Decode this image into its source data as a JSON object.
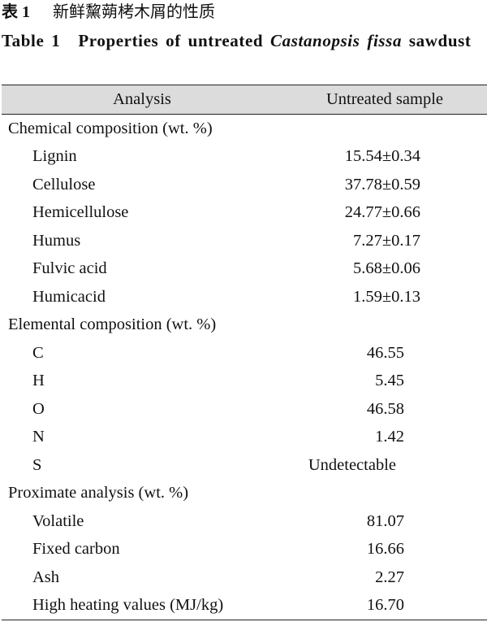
{
  "caption_cn": {
    "label": "表 1",
    "text": "新鲜黧蒴栲木屑的性质"
  },
  "caption_en": {
    "label": "Table 1",
    "text": "Properties of untreated",
    "species": "Castanopsis fissa",
    "text_after": "sawdust"
  },
  "table": {
    "header": [
      "Analysis",
      "Untreated sample"
    ],
    "sections": [
      {
        "title": "Chemical composition (wt. %)",
        "rows": [
          [
            "Lignin",
            "15.54±0.34"
          ],
          [
            "Cellulose",
            "37.78±0.59"
          ],
          [
            "Hemicellulose",
            "24.77±0.66"
          ],
          [
            "Humus",
            "7.27±0.17"
          ],
          [
            "Fulvic acid",
            "5.68±0.06"
          ],
          [
            "Humicacid",
            "1.59±0.13"
          ]
        ]
      },
      {
        "title": "Elemental composition (wt. %)",
        "rows": [
          [
            "C",
            "46.55"
          ],
          [
            "H",
            "5.45"
          ],
          [
            "O",
            "46.58"
          ],
          [
            "N",
            "1.42"
          ],
          [
            "S",
            "Undetectable"
          ]
        ]
      },
      {
        "title": "Proximate analysis (wt. %)",
        "rows": [
          [
            "Volatile",
            "81.07"
          ],
          [
            "Fixed carbon",
            "16.66"
          ],
          [
            "Ash",
            "2.27"
          ],
          [
            "High heating values (MJ/kg)",
            "16.70"
          ]
        ]
      }
    ]
  }
}
